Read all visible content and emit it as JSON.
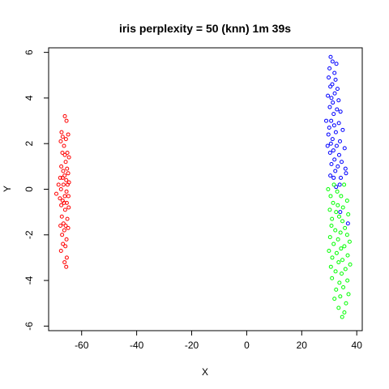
{
  "chart_data": {
    "type": "scatter",
    "title": "iris perplexity = 50 (knn) 1m 39s",
    "xlabel": "X",
    "ylabel": "Y",
    "xlim": [
      -72,
      42
    ],
    "ylim": [
      -6.2,
      6.2
    ],
    "x_ticks": [
      -60,
      -40,
      -20,
      0,
      20,
      40
    ],
    "y_ticks": [
      -6,
      -4,
      -2,
      0,
      2,
      4,
      6
    ],
    "marker": "open-circle",
    "series": [
      {
        "color": "#ff0000",
        "points": [
          [
            -66.1,
            3.2
          ],
          [
            -65.5,
            3.0
          ],
          [
            -67.3,
            2.5
          ],
          [
            -64.9,
            2.4
          ],
          [
            -66.9,
            2.3
          ],
          [
            -65.7,
            2.2
          ],
          [
            -67.6,
            2.1
          ],
          [
            -66.4,
            1.9
          ],
          [
            -65.2,
            1.6
          ],
          [
            -67.0,
            1.6
          ],
          [
            -64.6,
            1.4
          ],
          [
            -66.1,
            1.5
          ],
          [
            -65.8,
            1.2
          ],
          [
            -67.4,
            1.0
          ],
          [
            -65.3,
            0.9
          ],
          [
            -66.7,
            0.8
          ],
          [
            -64.9,
            0.7
          ],
          [
            -66.2,
            0.6
          ],
          [
            -67.8,
            0.5
          ],
          [
            -66.9,
            0.5
          ],
          [
            -65.6,
            0.4
          ],
          [
            -64.6,
            0.3
          ],
          [
            -68.4,
            0.2
          ],
          [
            -65.1,
            0.2
          ],
          [
            -66.6,
            0.2
          ],
          [
            -67.5,
            0.0
          ],
          [
            -65.5,
            -0.1
          ],
          [
            -69.2,
            -0.2
          ],
          [
            -66.1,
            -0.3
          ],
          [
            -64.8,
            -0.3
          ],
          [
            -67.9,
            -0.4
          ],
          [
            -66.9,
            -0.5
          ],
          [
            -65.4,
            -0.6
          ],
          [
            -66.4,
            -0.6
          ],
          [
            -67.4,
            -0.7
          ],
          [
            -64.7,
            -0.8
          ],
          [
            -66.0,
            -0.9
          ],
          [
            -67.2,
            -1.2
          ],
          [
            -65.2,
            -1.3
          ],
          [
            -66.6,
            -1.5
          ],
          [
            -67.7,
            -1.6
          ],
          [
            -65.8,
            -1.6
          ],
          [
            -64.9,
            -1.7
          ],
          [
            -66.3,
            -1.8
          ],
          [
            -67.1,
            -2.0
          ],
          [
            -65.5,
            -2.2
          ],
          [
            -66.8,
            -2.4
          ],
          [
            -65.9,
            -2.5
          ],
          [
            -67.5,
            -2.7
          ],
          [
            -65.4,
            -3.0
          ],
          [
            -66.2,
            -3.2
          ],
          [
            -65.6,
            -3.4
          ]
        ]
      },
      {
        "color": "#0000ff",
        "points": [
          [
            30.5,
            5.8
          ],
          [
            31.2,
            5.6
          ],
          [
            32.6,
            5.5
          ],
          [
            30.1,
            5.3
          ],
          [
            31.9,
            5.1
          ],
          [
            29.8,
            4.9
          ],
          [
            32.3,
            4.8
          ],
          [
            31.1,
            4.6
          ],
          [
            30.4,
            4.5
          ],
          [
            33.0,
            4.4
          ],
          [
            32.0,
            4.2
          ],
          [
            29.5,
            4.1
          ],
          [
            30.8,
            4.0
          ],
          [
            33.4,
            3.9
          ],
          [
            31.3,
            3.8
          ],
          [
            30.2,
            3.6
          ],
          [
            32.8,
            3.5
          ],
          [
            34.1,
            3.4
          ],
          [
            31.6,
            3.3
          ],
          [
            28.9,
            3.0
          ],
          [
            30.7,
            3.0
          ],
          [
            33.5,
            2.9
          ],
          [
            31.8,
            2.8
          ],
          [
            30.0,
            2.7
          ],
          [
            34.9,
            2.6
          ],
          [
            32.4,
            2.5
          ],
          [
            29.7,
            2.4
          ],
          [
            31.2,
            2.2
          ],
          [
            33.9,
            2.1
          ],
          [
            30.6,
            2.0
          ],
          [
            29.4,
            1.9
          ],
          [
            32.7,
            1.9
          ],
          [
            35.6,
            1.8
          ],
          [
            31.5,
            1.7
          ],
          [
            30.3,
            1.6
          ],
          [
            33.6,
            1.5
          ],
          [
            31.9,
            1.3
          ],
          [
            34.5,
            1.2
          ],
          [
            30.8,
            1.1
          ],
          [
            33.1,
            1.0
          ],
          [
            35.9,
            0.9
          ],
          [
            32.2,
            0.8
          ],
          [
            30.4,
            0.6
          ],
          [
            34.2,
            0.5
          ],
          [
            31.6,
            0.5
          ],
          [
            36.1,
            0.7
          ],
          [
            33.8,
            0.2
          ],
          [
            32.5,
            0.1
          ],
          [
            36.8,
            -1.5
          ],
          [
            34.0,
            -1.0
          ]
        ]
      },
      {
        "color": "#00ff00",
        "points": [
          [
            29.6,
            0.0
          ],
          [
            31.7,
            0.2
          ],
          [
            35.4,
            0.2
          ],
          [
            32.9,
            -0.1
          ],
          [
            30.5,
            -0.3
          ],
          [
            34.3,
            -0.3
          ],
          [
            36.5,
            -0.5
          ],
          [
            31.4,
            -0.6
          ],
          [
            33.1,
            -0.7
          ],
          [
            35.0,
            -0.8
          ],
          [
            30.2,
            -0.9
          ],
          [
            32.5,
            -1.0
          ],
          [
            36.9,
            -1.1
          ],
          [
            33.6,
            -1.2
          ],
          [
            31.0,
            -1.3
          ],
          [
            34.8,
            -1.4
          ],
          [
            30.8,
            -1.6
          ],
          [
            35.7,
            -1.7
          ],
          [
            32.2,
            -1.8
          ],
          [
            34.1,
            -1.9
          ],
          [
            36.5,
            -2.0
          ],
          [
            30.3,
            -2.1
          ],
          [
            33.2,
            -2.2
          ],
          [
            37.4,
            -2.3
          ],
          [
            31.6,
            -2.4
          ],
          [
            35.5,
            -2.5
          ],
          [
            34.3,
            -2.6
          ],
          [
            29.9,
            -2.7
          ],
          [
            32.7,
            -2.8
          ],
          [
            36.7,
            -2.9
          ],
          [
            31.1,
            -3.0
          ],
          [
            34.8,
            -3.1
          ],
          [
            33.4,
            -3.2
          ],
          [
            37.6,
            -3.3
          ],
          [
            30.6,
            -3.4
          ],
          [
            35.9,
            -3.5
          ],
          [
            32.3,
            -3.6
          ],
          [
            34.5,
            -3.7
          ],
          [
            31.0,
            -3.9
          ],
          [
            36.6,
            -4.0
          ],
          [
            33.7,
            -4.1
          ],
          [
            35.1,
            -4.3
          ],
          [
            32.5,
            -4.4
          ],
          [
            37.0,
            -4.6
          ],
          [
            34.0,
            -4.7
          ],
          [
            31.9,
            -4.8
          ],
          [
            36.1,
            -5.0
          ],
          [
            33.4,
            -5.2
          ],
          [
            35.5,
            -5.4
          ],
          [
            34.7,
            -5.6
          ]
        ]
      }
    ]
  }
}
